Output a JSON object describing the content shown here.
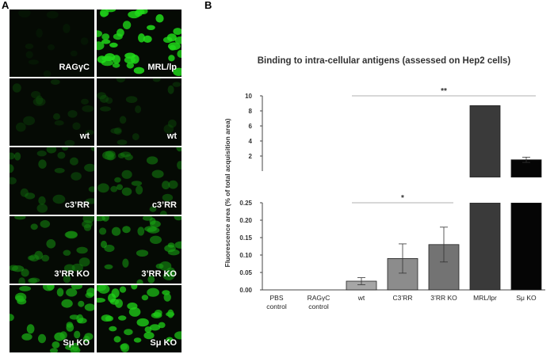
{
  "panels": {
    "a": "A",
    "b": "B"
  },
  "micrographs": [
    {
      "label": "RAGγC",
      "brightness": 0.02
    },
    {
      "label": "MRL/lp",
      "brightness": 0.95
    },
    {
      "label": "wt",
      "brightness": 0.18
    },
    {
      "label": "wt",
      "brightness": 0.22
    },
    {
      "label": "c3’RR",
      "brightness": 0.35
    },
    {
      "label": "c3’RR",
      "brightness": 0.45
    },
    {
      "label": "3’RR KO",
      "brightness": 0.5
    },
    {
      "label": "3’RR KO",
      "brightness": 0.6
    },
    {
      "label": "Sμ KO",
      "brightness": 0.75
    },
    {
      "label": "Sμ KO",
      "brightness": 0.85
    }
  ],
  "chart_data": {
    "type": "bar",
    "title": "Binding to intra-cellular antigens (assessed on Hep2 cells)",
    "ylabel": "Fluorescence area (% of total acquisition area)",
    "categories": [
      [
        "PBS",
        "control"
      ],
      [
        "RAGγC",
        "control"
      ],
      [
        "wt"
      ],
      [
        "C3’RR"
      ],
      [
        "3’RR KO"
      ],
      [
        "MRL/lpr"
      ],
      [
        "Sμ KO"
      ]
    ],
    "values": [
      0,
      0,
      0.025,
      0.09,
      0.13,
      8.7,
      1.5
    ],
    "errors": [
      0,
      0,
      0.01,
      0.042,
      0.05,
      0,
      0.35
    ],
    "colors": [
      "#ffffff",
      "#ffffff",
      "#a6a6a6",
      "#8c8c8c",
      "#737373",
      "#3a3a3a",
      "#050505"
    ],
    "axis_breaks": {
      "lower": {
        "range": [
          0,
          0.25
        ],
        "ticks": [
          "0.00",
          "0.05",
          "0.10",
          "0.15",
          "0.20",
          "0.25"
        ]
      },
      "upper": {
        "range": [
          0,
          10
        ],
        "ticks": [
          "2",
          "4",
          "6",
          "8",
          "10"
        ]
      }
    },
    "significance": [
      {
        "label": "**",
        "from": 2,
        "to": 6
      },
      {
        "label": "*",
        "from": 2,
        "to": 4
      }
    ]
  }
}
